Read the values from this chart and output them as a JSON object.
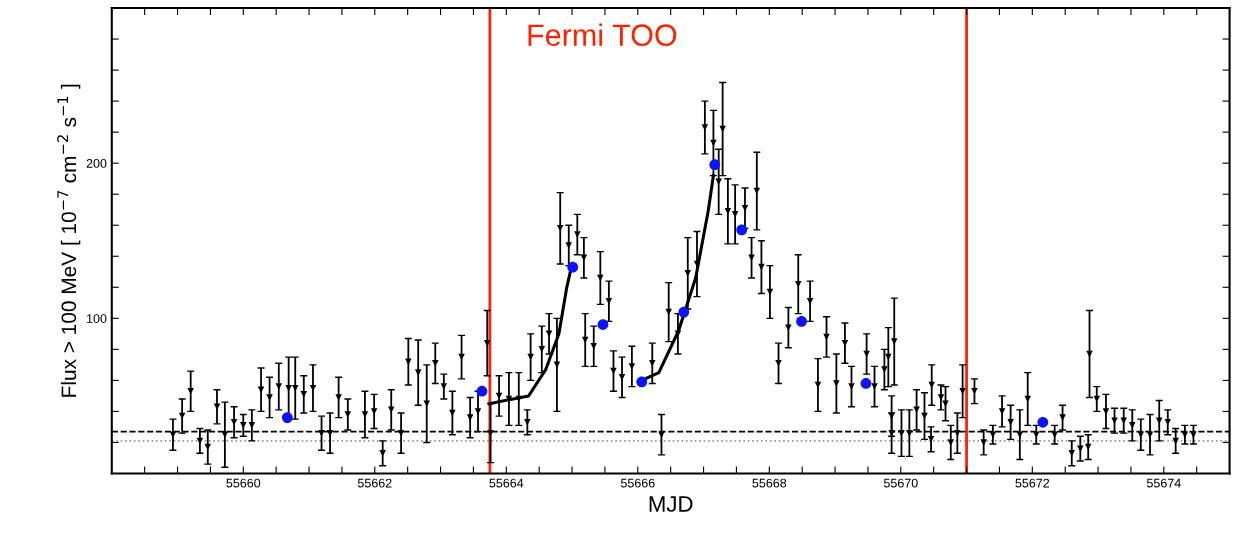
{
  "chart_data": {
    "type": "scatter",
    "xlabel": "MJD",
    "ylabel": "Flux > 100 MeV [ 10$^{−7}$ cm$^{−2}$ s$^{−1}$ ]",
    "xlim": [
      55658,
      55675
    ],
    "ylim": [
      0,
      300
    ],
    "xticks": [
      {
        "value": 55658.5,
        "label": null
      },
      {
        "value": 55659,
        "label": null
      },
      {
        "value": 55659.5,
        "label": null
      },
      55660,
      {
        "value": 55660.5,
        "label": null
      },
      {
        "value": 55661,
        "label": null
      },
      {
        "value": 55661.5,
        "label": null
      },
      55662,
      {
        "value": 55662.5,
        "label": null
      },
      {
        "value": 55663,
        "label": null
      },
      {
        "value": 55663.5,
        "label": null
      },
      55664,
      {
        "value": 55664.5,
        "label": null
      },
      {
        "value": 55665,
        "label": null
      },
      {
        "value": 55665.5,
        "label": null
      },
      55666,
      {
        "value": 55666.5,
        "label": null
      },
      {
        "value": 55667,
        "label": null
      },
      {
        "value": 55667.5,
        "label": null
      },
      55668,
      {
        "value": 55668.5,
        "label": null
      },
      {
        "value": 55669,
        "label": null
      },
      {
        "value": 55669.5,
        "label": null
      },
      55670,
      {
        "value": 55670.5,
        "label": null
      },
      {
        "value": 55671,
        "label": null
      },
      {
        "value": 55671.5,
        "label": null
      },
      55672,
      {
        "value": 55672.5,
        "label": null
      },
      {
        "value": 55673,
        "label": null
      },
      {
        "value": 55673.5,
        "label": null
      },
      55674,
      {
        "value": 55674.5,
        "label": null
      }
    ],
    "yticks": [
      {
        "value": 20,
        "label": null
      },
      {
        "value": 40,
        "label": null
      },
      {
        "value": 60,
        "label": null
      },
      {
        "value": 80,
        "label": null
      },
      100,
      {
        "value": 120,
        "label": null
      },
      {
        "value": 140,
        "label": null
      },
      {
        "value": 160,
        "label": null
      },
      {
        "value": 180,
        "label": null
      },
      200,
      {
        "value": 220,
        "label": null
      },
      {
        "value": 240,
        "label": null
      },
      {
        "value": 260,
        "label": null
      },
      {
        "value": 280,
        "label": null
      }
    ],
    "grid": false,
    "legend": false,
    "ref_lines": [
      {
        "axis": "y",
        "value": 27,
        "color": "#000000",
        "line_style": "dashed"
      },
      {
        "axis": "y",
        "value": 21,
        "color": "#999999",
        "line_style": "dotted"
      },
      {
        "axis": "x",
        "value": 55663.75,
        "color": "#ff2200",
        "line_style": "solid",
        "label": "Fermi TOO"
      },
      {
        "axis": "x",
        "value": 55671.0,
        "color": "#ff2200",
        "line_style": "solid"
      }
    ],
    "series": [
      {
        "marker": "triangle",
        "color": "#000000",
        "x": [
          55658.93,
          55659.07,
          55659.2,
          55659.34,
          55659.46,
          55659.6,
          55659.72,
          55659.86,
          55660.0,
          55660.13,
          55660.27,
          55660.4,
          55660.54,
          55660.69,
          55660.79,
          55660.92,
          55661.06,
          55661.19,
          55661.32,
          55661.45,
          55661.59,
          55661.85,
          55661.99,
          55662.12,
          55662.25,
          55662.4,
          55662.51,
          55662.66,
          55662.79,
          55662.92,
          55663.05,
          55663.18,
          55663.32,
          55663.45,
          55663.57,
          55663.71,
          55663.76,
          55663.89,
          55664.04,
          55664.19,
          55664.32,
          55664.37,
          55664.54,
          55664.65,
          55664.77,
          55664.82,
          55664.95,
          55665.08,
          55665.18,
          55665.2,
          55665.33,
          55665.43,
          55665.56,
          55665.63,
          55665.76,
          55665.91,
          55666.22,
          55666.36,
          55666.47,
          55666.61,
          55666.76,
          55666.9,
          55667.02,
          55667.15,
          55667.29,
          55667.23,
          55667.37,
          55667.48,
          55667.63,
          55667.81,
          55667.73,
          55667.88,
          55668.01,
          55668.14,
          55668.29,
          55668.44,
          55668.62,
          55668.74,
          55668.87,
          55669.02,
          55669.15,
          55669.25,
          55669.6,
          55669.75,
          55669.86,
          55669.48,
          55669.81,
          55669.9,
          55669.86,
          55670.01,
          55670.13,
          55670.24,
          55670.36,
          55670.47,
          55670.46,
          55670.61,
          55670.68,
          55670.76,
          55670.86,
          55670.94,
          55671.12,
          55671.26,
          55671.4,
          55671.54,
          55671.67,
          55671.81,
          55671.93,
          55672.06,
          55672.34,
          55672.46,
          55672.6,
          55672.73,
          55672.85,
          55672.87,
          55672.98,
          55673.12,
          55673.25,
          55673.39,
          55673.52,
          55673.65,
          55673.79,
          55673.93,
          55674.06,
          55674.18,
          55674.32,
          55674.45
        ],
        "values": [
          25,
          37,
          53,
          21,
          17,
          43,
          25,
          33,
          31,
          31,
          54,
          49,
          56,
          55,
          55,
          51,
          55,
          26,
          26,
          49,
          38,
          38,
          40,
          13,
          41,
          26,
          72,
          65,
          45,
          71,
          56,
          39,
          75,
          36,
          40,
          84,
          26,
          50,
          48,
          48,
          33,
          75,
          80,
          90,
          70,
          158,
          147,
          154,
          139,
          86,
          82,
          126,
          111,
          66,
          62,
          69,
          71,
          25,
          104,
          90,
          129,
          135,
          223,
          213,
          222,
          188,
          169,
          167,
          171,
          182,
          139,
          133,
          117,
          71,
          94,
          122,
          111,
          57,
          88,
          58,
          84,
          56,
          56,
          67,
          37,
          77,
          75,
          85,
          26,
          26,
          26,
          41,
          37,
          57,
          22,
          49,
          45,
          20,
          26,
          53,
          53,
          20,
          25,
          40,
          33,
          25,
          48,
          25,
          25,
          36,
          13,
          16,
          17,
          77,
          48,
          40,
          34,
          34,
          31,
          25,
          25,
          34,
          33,
          21,
          25,
          25
        ],
        "errors": [
          10,
          11,
          13,
          8,
          11,
          11,
          21,
          10,
          7,
          10,
          14,
          13,
          15,
          20,
          20,
          12,
          15,
          11,
          13,
          13,
          10,
          15,
          11,
          8,
          13,
          13,
          15,
          21,
          25,
          13,
          8,
          14,
          14,
          13,
          13,
          21,
          19,
          13,
          17,
          17,
          8,
          15,
          15,
          13,
          30,
          23,
          13,
          13,
          13,
          17,
          13,
          17,
          13,
          13,
          13,
          13,
          13,
          13,
          19,
          13,
          23,
          21,
          17,
          21,
          30,
          21,
          21,
          19,
          13,
          25,
          13,
          17,
          17,
          13,
          13,
          19,
          13,
          17,
          13,
          19,
          13,
          13,
          13,
          13,
          13,
          13,
          19,
          28,
          13,
          15,
          15,
          13,
          15,
          13,
          8,
          8,
          11,
          11,
          13,
          17,
          8,
          8,
          6,
          10,
          11,
          16,
          17,
          6,
          6,
          8,
          8,
          8,
          8,
          28,
          8,
          11,
          8,
          8,
          10,
          10,
          13,
          13,
          8,
          8,
          6,
          6
        ]
      },
      {
        "type": "line",
        "color": "#000000",
        "line_style": "solid",
        "marker": "none",
        "x": [
          55663.74,
          55664.34,
          55664.6,
          55664.8,
          55664.92,
          55665.0,
          55665.5,
          55666.01,
          55666.32,
          55666.62,
          55666.88,
          55667.07,
          55667.15
        ],
        "values": [
          45,
          50,
          67,
          90,
          120,
          135,
          null,
          59,
          65,
          92,
          126,
          169,
          192
        ]
      },
      {
        "marker": "circle",
        "color": "#0a14ff",
        "x": [
          55660.67,
          55663.63,
          55665.01,
          55665.47,
          55666.06,
          55666.7,
          55667.17,
          55667.58,
          55668.49,
          55669.47,
          55672.16
        ],
        "values": [
          36,
          53,
          133,
          96,
          59,
          104,
          199,
          157,
          98,
          58,
          33
        ]
      }
    ]
  }
}
